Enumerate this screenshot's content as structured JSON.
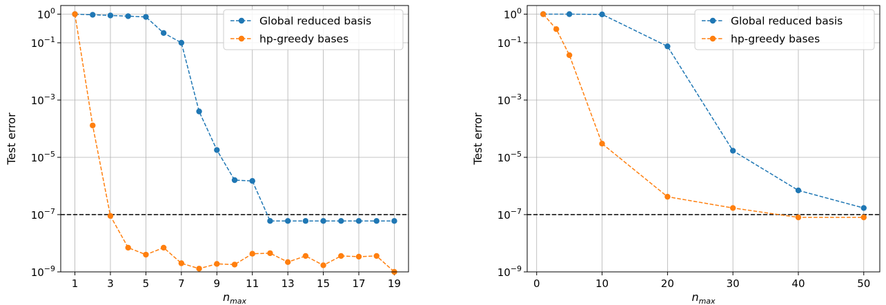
{
  "chart_data": [
    {
      "type": "line",
      "ylabel": "Test error",
      "xlabel_base": "n",
      "xlabel_sub": "max",
      "yscale": "log",
      "ylim": [
        1e-09,
        2
      ],
      "xlim": [
        0.2,
        19.8
      ],
      "xticks": [
        1,
        3,
        5,
        7,
        9,
        11,
        13,
        15,
        17,
        19
      ],
      "yticks": [
        -9,
        -7,
        -5,
        -3,
        -1,
        0
      ],
      "ytick_labels": [
        {
          "base": "10",
          "exp": "−9"
        },
        {
          "base": "10",
          "exp": "−7"
        },
        {
          "base": "10",
          "exp": "−5"
        },
        {
          "base": "10",
          "exp": "−3"
        },
        {
          "base": "10",
          "exp": "−1"
        },
        {
          "base": "10",
          "exp": "0"
        }
      ],
      "grid": true,
      "legend_position": "top-right",
      "threshold": 1e-07,
      "series": [
        {
          "name": "Global reduced basis",
          "color": "#1f77b4",
          "x": [
            1,
            2,
            3,
            4,
            5,
            6,
            7,
            8,
            9,
            10,
            11,
            12,
            13,
            14,
            15,
            16,
            17,
            18,
            19
          ],
          "y": [
            1.0,
            0.95,
            0.9,
            0.85,
            0.8,
            0.22,
            0.1,
            0.0004,
            1.8e-05,
            1.6e-06,
            1.5e-06,
            6e-08,
            6e-08,
            6e-08,
            6e-08,
            6e-08,
            6e-08,
            6e-08,
            6e-08
          ]
        },
        {
          "name": "hp-greedy bases",
          "color": "#ff7f0e",
          "x": [
            1,
            2,
            3,
            4,
            5,
            6,
            7,
            8,
            9,
            10,
            11,
            12,
            13,
            14,
            15,
            16,
            17,
            18,
            19
          ],
          "y": [
            1.0,
            0.00013,
            9e-08,
            7e-09,
            4e-09,
            7e-09,
            2e-09,
            1.3e-09,
            1.9e-09,
            1.8e-09,
            4.3e-09,
            4.5e-09,
            2.2e-09,
            3.6e-09,
            1.7e-09,
            3.6e-09,
            3.4e-09,
            3.6e-09,
            1e-09
          ]
        }
      ]
    },
    {
      "type": "line",
      "ylabel": "Test error",
      "xlabel_base": "n",
      "xlabel_sub": "max",
      "yscale": "log",
      "ylim": [
        1e-09,
        2
      ],
      "xlim": [
        -1.45,
        52.45
      ],
      "xticks": [
        0,
        10,
        20,
        30,
        40,
        50
      ],
      "yticks": [
        -9,
        -7,
        -5,
        -3,
        -1,
        0
      ],
      "ytick_labels": [
        {
          "base": "10",
          "exp": "−9"
        },
        {
          "base": "10",
          "exp": "−7"
        },
        {
          "base": "10",
          "exp": "−5"
        },
        {
          "base": "10",
          "exp": "−3"
        },
        {
          "base": "10",
          "exp": "−1"
        },
        {
          "base": "10",
          "exp": "0"
        }
      ],
      "grid": true,
      "legend_position": "top-right",
      "threshold": 1e-07,
      "series": [
        {
          "name": "Global reduced basis",
          "color": "#1f77b4",
          "x": [
            1,
            5,
            10,
            20,
            30,
            40,
            50
          ],
          "y": [
            1.0,
            1.0,
            0.98,
            0.075,
            1.7e-05,
            7e-07,
            1.7e-07
          ]
        },
        {
          "name": "hp-greedy bases",
          "color": "#ff7f0e",
          "x": [
            1,
            3,
            5,
            10,
            20,
            30,
            40,
            50
          ],
          "y": [
            1.0,
            0.3,
            0.037,
            3e-05,
            4.2e-07,
            1.7e-07,
            8e-08,
            8e-08
          ]
        }
      ]
    }
  ]
}
